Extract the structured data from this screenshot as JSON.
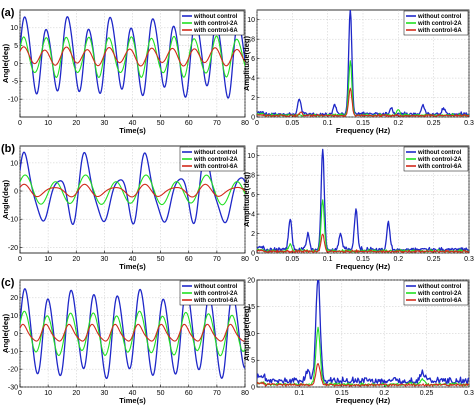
{
  "colors": {
    "without_control": "#1f28c8",
    "with_control_2A": "#22e022",
    "with_control_6A": "#d22a1a"
  },
  "chart_data": [
    {
      "id": "a-time",
      "panel_label": "(a)",
      "type": "line",
      "xlabel": "Time(s)",
      "ylabel": "Angle(deg)",
      "xlim": [
        0,
        80
      ],
      "ylim": [
        -15,
        15
      ],
      "xticks": [
        0,
        10,
        20,
        30,
        40,
        50,
        60,
        70,
        80
      ],
      "yticks": [
        -10,
        -5,
        0,
        5,
        10
      ],
      "grid": true,
      "legend": {
        "position": "top-right",
        "entries": [
          "without control",
          "with control-2A",
          "with control-6A"
        ]
      },
      "signal": {
        "kind": "time",
        "x_max": 80,
        "step": 0.1
      },
      "series": [
        {
          "name": "without control",
          "color_key": "without_control",
          "center": 2,
          "components": [
            {
              "amp": 9.5,
              "freq": 0.132,
              "phase": 0.0
            },
            {
              "amp": 1.8,
              "freq": 0.062,
              "phase": 1.2
            },
            {
              "amp": 0.8,
              "freq": 0.264,
              "phase": 0.4
            }
          ]
        },
        {
          "name": "with control-2A",
          "color_key": "with_control_2A",
          "center": 2,
          "components": [
            {
              "amp": 5.2,
              "freq": 0.132,
              "phase": 0.3
            },
            {
              "amp": 0.7,
              "freq": 0.2,
              "phase": 1.0
            }
          ]
        },
        {
          "name": "with control-6A",
          "color_key": "with_control_6A",
          "center": 2,
          "components": [
            {
              "amp": 2.2,
              "freq": 0.132,
              "phase": 0.5
            },
            {
              "amp": 0.5,
              "freq": 0.062,
              "phase": 0.8
            }
          ]
        }
      ]
    },
    {
      "id": "a-freq",
      "type": "line",
      "xlabel": "Frequency (Hz)",
      "ylabel": "Amplitude(deg)",
      "xlim": [
        0,
        0.3
      ],
      "ylim": [
        0,
        11
      ],
      "xticks": [
        0,
        0.05,
        0.1,
        0.15,
        0.2,
        0.25,
        0.3
      ],
      "yticks": [
        0,
        2,
        4,
        6,
        8,
        10
      ],
      "grid": true,
      "legend": {
        "position": "top-right",
        "entries": [
          "without control",
          "with control-2A",
          "with control-6A"
        ]
      },
      "signal": {
        "kind": "spectrum",
        "x_max": 0.3,
        "step": 0.001,
        "width": 0.0022,
        "noise": 0.18
      },
      "series": [
        {
          "name": "without control",
          "color_key": "without_control",
          "base": 0.25,
          "peaks": [
            [
              0.06,
              1.6
            ],
            [
              0.11,
              0.9
            ],
            [
              0.132,
              10.8
            ],
            [
              0.19,
              0.7
            ],
            [
              0.235,
              0.9
            ],
            [
              0.264,
              0.6
            ]
          ]
        },
        {
          "name": "with control-2A",
          "color_key": "with_control_2A",
          "base": 0.15,
          "peaks": [
            [
              0.132,
              5.5
            ],
            [
              0.2,
              0.5
            ]
          ]
        },
        {
          "name": "with control-6A",
          "color_key": "with_control_6A",
          "base": 0.1,
          "peaks": [
            [
              0.132,
              2.8
            ],
            [
              0.062,
              0.3
            ]
          ]
        }
      ]
    },
    {
      "id": "b-time",
      "panel_label": "(b)",
      "type": "line",
      "xlabel": "Time(s)",
      "ylabel": "Angle(deg)",
      "xlim": [
        0,
        80
      ],
      "ylim": [
        -22,
        16
      ],
      "xticks": [
        0,
        10,
        20,
        30,
        40,
        50,
        60,
        70,
        80
      ],
      "yticks": [
        -20,
        -10,
        0,
        10
      ],
      "grid": true,
      "legend": {
        "position": "top-right",
        "entries": [
          "without control",
          "with control-2A",
          "with control-6A"
        ]
      },
      "signal": {
        "kind": "time",
        "x_max": 80,
        "step": 0.1
      },
      "series": [
        {
          "name": "without control",
          "color_key": "without_control",
          "center": -1,
          "components": [
            {
              "amp": 9.0,
              "freq": 0.093,
              "phase": 0.2
            },
            {
              "amp": 3.5,
              "freq": 0.047,
              "phase": 1.4
            },
            {
              "amp": 2.8,
              "freq": 0.14,
              "phase": 0.6
            },
            {
              "amp": 1.8,
              "freq": 0.186,
              "phase": 0.9
            }
          ]
        },
        {
          "name": "with control-2A",
          "color_key": "with_control_2A",
          "center": 0,
          "components": [
            {
              "amp": 4.5,
              "freq": 0.093,
              "phase": 0.5
            },
            {
              "amp": 1.2,
              "freq": 0.047,
              "phase": 1.1
            }
          ]
        },
        {
          "name": "with control-6A",
          "color_key": "with_control_6A",
          "center": 0,
          "components": [
            {
              "amp": 1.8,
              "freq": 0.093,
              "phase": 0.7
            },
            {
              "amp": 0.6,
              "freq": 0.14,
              "phase": 0.3
            }
          ]
        }
      ]
    },
    {
      "id": "b-freq",
      "type": "line",
      "xlabel": "Frequency (Hz)",
      "ylabel": "Amplitude(deg)",
      "xlim": [
        0,
        0.3
      ],
      "ylim": [
        0,
        11
      ],
      "xticks": [
        0,
        0.05,
        0.1,
        0.15,
        0.2,
        0.25,
        0.3
      ],
      "yticks": [
        0,
        2,
        4,
        6,
        8,
        10
      ],
      "grid": true,
      "legend": {
        "position": "top-right",
        "entries": [
          "without control",
          "with control-2A",
          "with control-6A"
        ]
      },
      "signal": {
        "kind": "spectrum",
        "x_max": 0.3,
        "step": 0.001,
        "width": 0.0022,
        "noise": 0.22
      },
      "series": [
        {
          "name": "without control",
          "color_key": "without_control",
          "base": 0.3,
          "peaks": [
            [
              0.047,
              3.2
            ],
            [
              0.072,
              1.6
            ],
            [
              0.093,
              10.3
            ],
            [
              0.118,
              1.6
            ],
            [
              0.14,
              4.1
            ],
            [
              0.186,
              2.8
            ]
          ]
        },
        {
          "name": "with control-2A",
          "color_key": "with_control_2A",
          "base": 0.15,
          "peaks": [
            [
              0.093,
              5.2
            ],
            [
              0.047,
              0.7
            ]
          ]
        },
        {
          "name": "with control-6A",
          "color_key": "with_control_6A",
          "base": 0.1,
          "peaks": [
            [
              0.093,
              1.8
            ]
          ]
        }
      ]
    },
    {
      "id": "c-time",
      "panel_label": "(c)",
      "type": "line",
      "xlabel": "Time(s)",
      "ylabel": "Angle(deg)",
      "xlim": [
        0,
        80
      ],
      "ylim": [
        -30,
        30
      ],
      "xticks": [
        0,
        10,
        20,
        30,
        40,
        50,
        60,
        70,
        80
      ],
      "yticks": [
        -30,
        -20,
        -10,
        0,
        10,
        20
      ],
      "grid": true,
      "legend": {
        "position": "top-right",
        "entries": [
          "without control",
          "with control-2A",
          "with control-6A"
        ]
      },
      "signal": {
        "kind": "time",
        "x_max": 80,
        "step": 0.1
      },
      "series": [
        {
          "name": "without control",
          "color_key": "without_control",
          "center": 0,
          "components": [
            {
              "amp": 22.0,
              "freq": 0.122,
              "phase": 0.1
            },
            {
              "amp": 3.0,
              "freq": 0.05,
              "phase": 1.3
            },
            {
              "amp": 1.5,
              "freq": 0.244,
              "phase": 0.2
            }
          ]
        },
        {
          "name": "with control-2A",
          "color_key": "with_control_2A",
          "center": 0,
          "components": [
            {
              "amp": 11.0,
              "freq": 0.122,
              "phase": 0.4
            },
            {
              "amp": 1.5,
              "freq": 0.05,
              "phase": 0.9
            }
          ]
        },
        {
          "name": "with control-6A",
          "color_key": "with_control_6A",
          "center": 0,
          "components": [
            {
              "amp": 4.5,
              "freq": 0.122,
              "phase": 0.6
            },
            {
              "amp": 0.8,
              "freq": 0.244,
              "phase": 0.5
            }
          ]
        }
      ]
    },
    {
      "id": "c-freq",
      "type": "line",
      "xlabel": "Frequency (Hz)",
      "ylabel": "Amplitude(deg)",
      "xlim": [
        0.05,
        0.3
      ],
      "ylim": [
        0,
        20
      ],
      "xticks": [
        0.1,
        0.15,
        0.2,
        0.25,
        0.3
      ],
      "yticks": [
        0,
        5,
        10,
        15,
        20
      ],
      "grid": true,
      "legend": {
        "position": "top-right",
        "entries": [
          "without control",
          "with control-2A",
          "with control-6A"
        ]
      },
      "signal": {
        "kind": "spectrum",
        "x_min": 0.05,
        "x_max": 0.3,
        "step": 0.001,
        "width": 0.0025,
        "noise": 0.35
      },
      "series": [
        {
          "name": "without control",
          "color_key": "without_control",
          "base": 1.1,
          "peaks": [
            [
              0.122,
              19.5
            ],
            [
              0.11,
              2.0
            ],
            [
              0.245,
              1.6
            ]
          ]
        },
        {
          "name": "with control-2A",
          "color_key": "with_control_2A",
          "base": 0.4,
          "peaks": [
            [
              0.122,
              10.5
            ],
            [
              0.245,
              1.0
            ]
          ]
        },
        {
          "name": "with control-6A",
          "color_key": "with_control_6A",
          "base": 0.3,
          "peaks": [
            [
              0.122,
              4.0
            ]
          ]
        }
      ]
    }
  ]
}
